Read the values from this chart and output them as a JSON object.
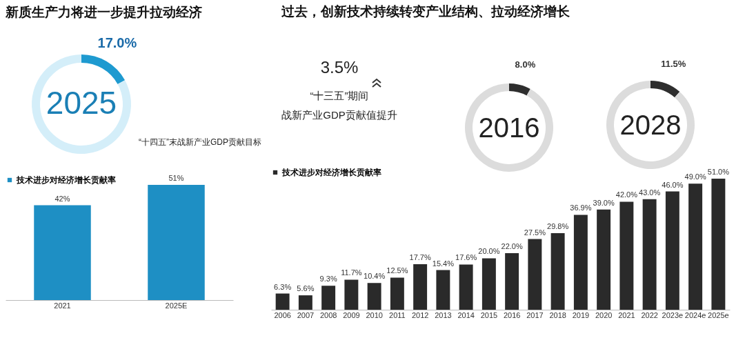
{
  "chart_data": [
    {
      "type": "donut",
      "title": "新质生产力将进一步提升拉动经济",
      "categories": [
        null,
        null
      ],
      "values": [
        17.0,
        83.0
      ],
      "colors": [
        "#1e9ad0",
        "#d4eef9"
      ],
      "value_labels": [
        "17.0%",
        null
      ],
      "annotations": [
        "2025",
        "“十四五”末战新产业GDP贡献目标"
      ]
    },
    {
      "type": "bar",
      "categories": [
        "2021",
        "2025E"
      ],
      "series": [
        {
          "name": "技术进步对经济增长贡献率",
          "color": "#1e8fc4",
          "values": [
            42,
            51
          ],
          "value_labels": [
            "42%",
            "51%"
          ]
        }
      ],
      "legend": "top left"
    },
    {
      "type": "other",
      "title": "过去，创新技术持续转变产业结构、拉动经济增长",
      "annotations": [
        "3.5%",
        "“十三五”期间",
        "战新产业GDP贡献值提升"
      ]
    },
    {
      "type": "donut",
      "categories": [
        null,
        null
      ],
      "values": [
        8.0,
        92.0
      ],
      "colors": [
        "#2e2e2e",
        "#dcdcdc"
      ],
      "value_labels": [
        "8.0%",
        null
      ],
      "annotations": [
        "2016"
      ]
    },
    {
      "type": "donut",
      "categories": [
        null,
        null
      ],
      "values": [
        11.5,
        88.5
      ],
      "colors": [
        "#2e2e2e",
        "#dcdcdc"
      ],
      "value_labels": [
        "11.5%",
        null
      ],
      "annotations": [
        "2028"
      ]
    },
    {
      "type": "bar",
      "categories": [
        "2006",
        "2007",
        "2008",
        "2009",
        "2010",
        "2011",
        "2012",
        "2013",
        "2014",
        "2015",
        "2016",
        "2017",
        "2018",
        "2019",
        "2020",
        "2021",
        "2022",
        "2023e",
        "2024e",
        "2025e"
      ],
      "series": [
        {
          "name": "技术进步对经济增长贡献率",
          "color": "#2a2a2a",
          "values": [
            6.3,
            5.6,
            9.3,
            11.7,
            10.4,
            12.5,
            17.7,
            15.4,
            17.6,
            20.0,
            22.0,
            27.5,
            29.8,
            36.9,
            39.0,
            42.0,
            43.0,
            46.0,
            49.0,
            51.0
          ],
          "value_labels": [
            "6.3%",
            "5.6%",
            "9.3%",
            "11.7%",
            "10.4%",
            "12.5%",
            "17.7%",
            "15.4%",
            "17.6%",
            "20.0%",
            "22.0%",
            "27.5%",
            "29.8%",
            "36.9%",
            "39.0%",
            "42.0%",
            "43.0%",
            "46.0%",
            "49.0%",
            "51.0%"
          ]
        }
      ],
      "legend": "top left"
    }
  ]
}
